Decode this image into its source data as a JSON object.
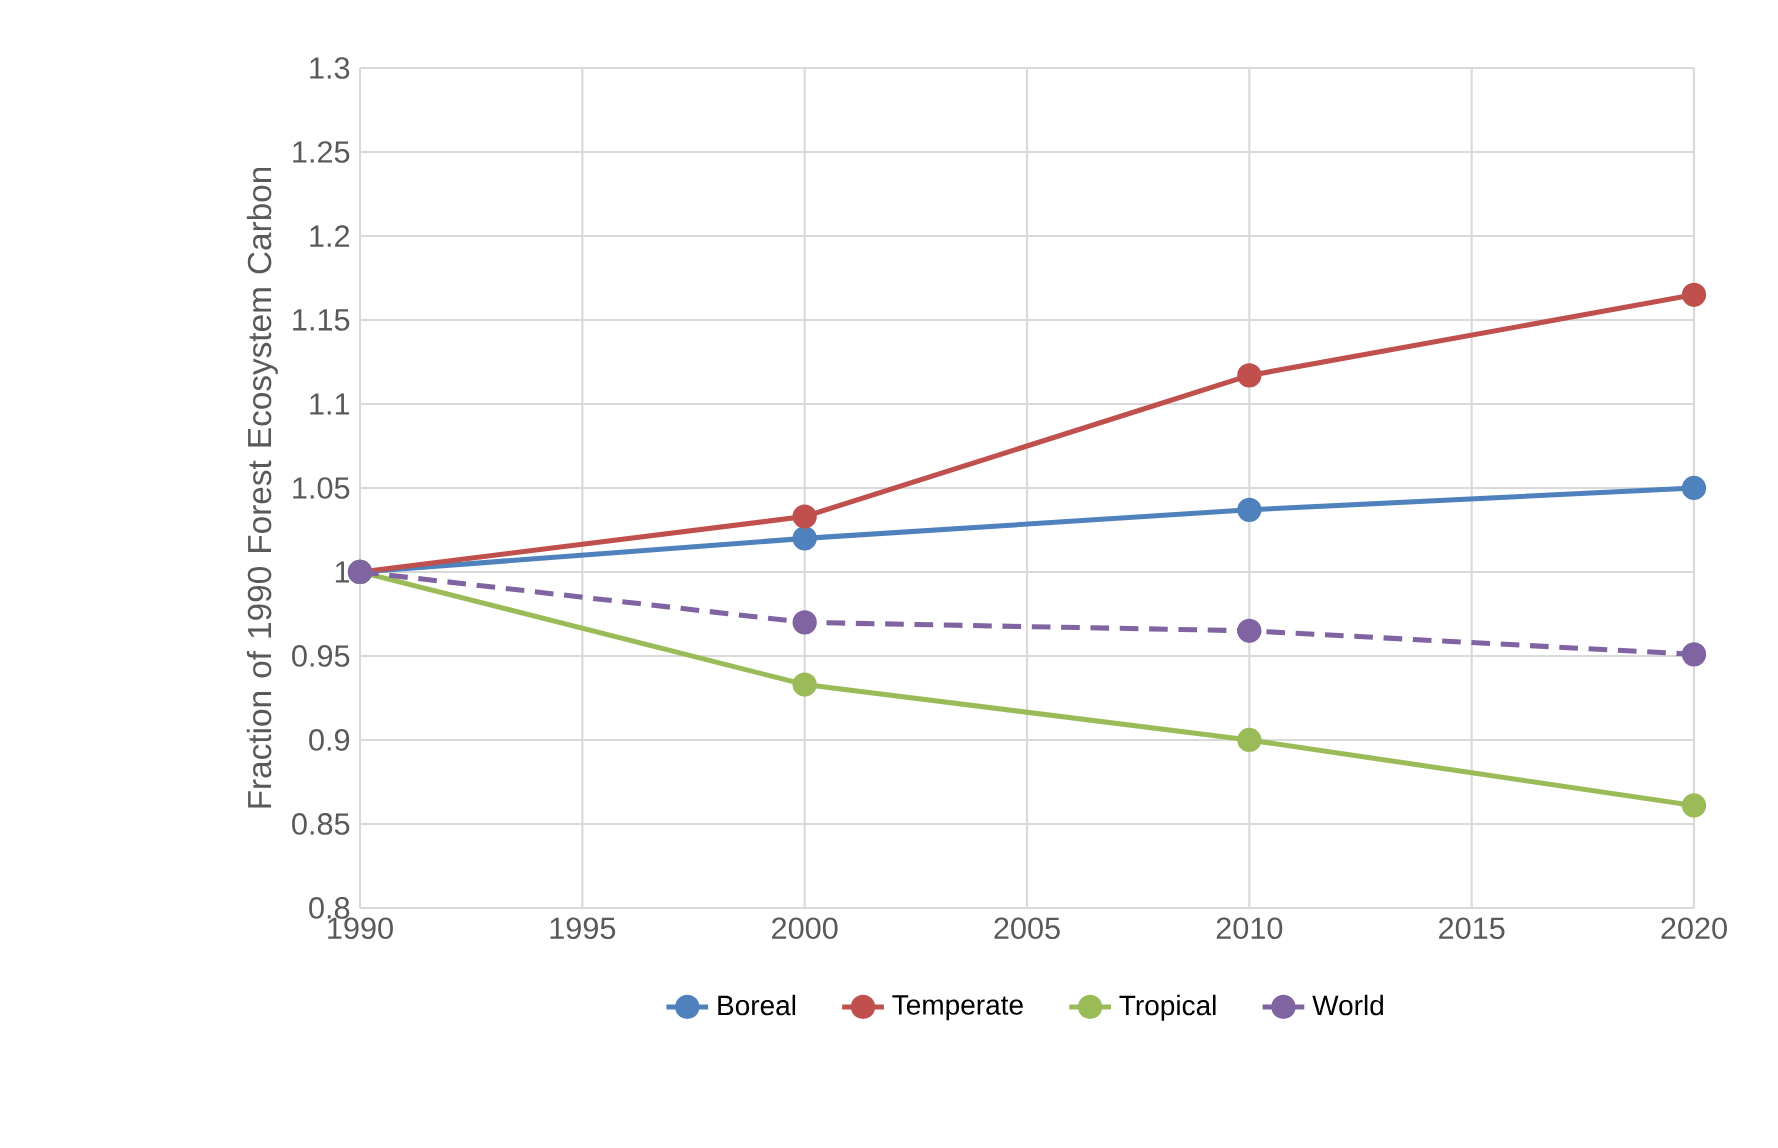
{
  "chart_data": {
    "type": "line",
    "ylabel": "Fraction of 1990 Forest Ecosystem Carbon",
    "x": [
      1990,
      2000,
      2010,
      2020
    ],
    "series": [
      {
        "name": "Boreal",
        "color": "#4f81bd",
        "values": [
          1.0,
          1.02,
          1.037,
          1.05
        ]
      },
      {
        "name": "Temperate",
        "color": "#c0504d",
        "values": [
          1.0,
          1.033,
          1.117,
          1.165
        ]
      },
      {
        "name": "Tropical",
        "color": "#9bbb59",
        "values": [
          1.0,
          0.933,
          0.9,
          0.861
        ]
      },
      {
        "name": "World",
        "color": "#8064a2",
        "values": [
          1.0,
          0.97,
          0.965,
          0.951
        ],
        "line_style": "dashed"
      }
    ],
    "xlim": [
      1990,
      2020
    ],
    "xticks": [
      1990,
      1995,
      2000,
      2005,
      2010,
      2015,
      2020
    ],
    "ylim": [
      0.8,
      1.3
    ],
    "yticks": [
      0.8,
      0.85,
      0.9,
      0.95,
      1,
      1.05,
      1.1,
      1.15,
      1.2,
      1.25,
      1.3
    ],
    "grid": true,
    "legend": "bottom",
    "marker": "circle",
    "line_style": "solid"
  }
}
